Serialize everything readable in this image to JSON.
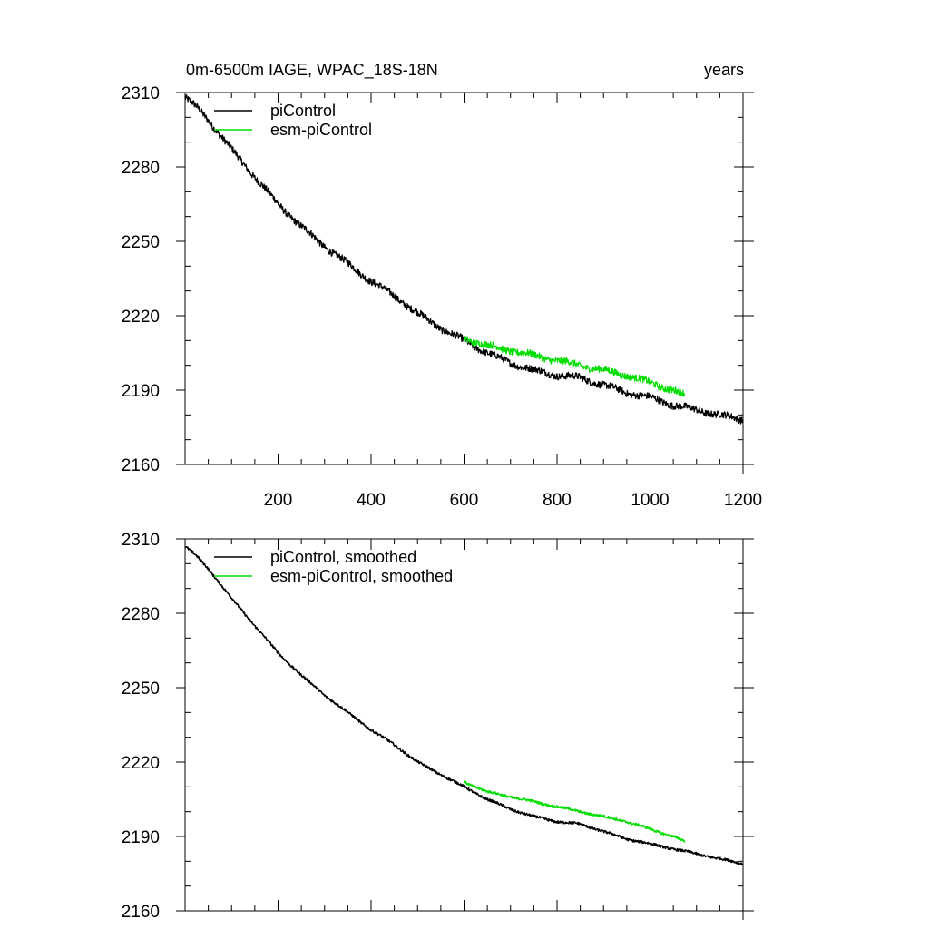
{
  "figure": {
    "title_left": "0m-6500m IAGE, WPAC_18S-18N",
    "title_right": "years"
  },
  "colors": {
    "picontrol": "#000000",
    "esm": "#00dd00",
    "axis": "#000000"
  },
  "chart_data": [
    {
      "type": "line",
      "title": "0m-6500m IAGE, WPAC_18S-18N",
      "xlabel": "years",
      "ylabel": "",
      "xlim": [
        0,
        1200
      ],
      "ylim": [
        2160,
        2310
      ],
      "xticks": [
        200,
        400,
        600,
        800,
        1000,
        1200
      ],
      "xtick_labels": [
        "200",
        "400",
        "600",
        "800",
        "1000",
        "1200"
      ],
      "yticks": [
        2160,
        2190,
        2220,
        2250,
        2280,
        2310
      ],
      "ytick_labels": [
        "2160",
        "2190",
        "2220",
        "2250",
        "2280",
        "2310"
      ],
      "legend_position": "top-left",
      "series": [
        {
          "name": "piControl",
          "color": "#000000",
          "noise": 1.4,
          "x": [
            0,
            25,
            50,
            75,
            100,
            150,
            200,
            250,
            300,
            350,
            400,
            450,
            500,
            550,
            600,
            650,
            700,
            750,
            800,
            850,
            900,
            950,
            1000,
            1050,
            1100,
            1150,
            1200
          ],
          "y": [
            2308,
            2304,
            2299,
            2293,
            2287,
            2276,
            2265,
            2256,
            2248,
            2241,
            2234,
            2228,
            2221,
            2215,
            2210,
            2205,
            2201,
            2198,
            2196,
            2195,
            2192,
            2189,
            2187,
            2184,
            2182,
            2180,
            2178
          ]
        },
        {
          "name": "esm-piControl",
          "color": "#00dd00",
          "noise": 1.4,
          "x": [
            600,
            650,
            700,
            750,
            800,
            850,
            900,
            950,
            1000,
            1050,
            1075
          ],
          "y": [
            2211,
            2208,
            2206,
            2204,
            2202,
            2200,
            2198,
            2196,
            2193,
            2190,
            2188
          ]
        }
      ]
    },
    {
      "type": "line",
      "title": "",
      "xlabel": "",
      "ylabel": "",
      "xlim": [
        0,
        1200
      ],
      "ylim": [
        2160,
        2310
      ],
      "xticks": [
        200,
        400,
        600,
        800,
        1000,
        1200
      ],
      "xtick_labels": [],
      "yticks": [
        2160,
        2190,
        2220,
        2250,
        2280,
        2310
      ],
      "ytick_labels": [
        "2160",
        "2190",
        "2220",
        "2250",
        "2280",
        "2310"
      ],
      "legend_position": "top-left",
      "series": [
        {
          "name": "piControl, smoothed",
          "color": "#000000",
          "noise": 0.5,
          "x": [
            0,
            25,
            50,
            75,
            100,
            150,
            200,
            250,
            300,
            350,
            400,
            450,
            500,
            550,
            600,
            650,
            700,
            750,
            800,
            850,
            900,
            950,
            1000,
            1050,
            1100,
            1150,
            1200
          ],
          "y": [
            2307,
            2303,
            2298,
            2292,
            2286,
            2275,
            2264,
            2255,
            2247,
            2240,
            2233,
            2227,
            2220,
            2215,
            2210,
            2205,
            2201,
            2198,
            2196,
            2195,
            2192,
            2189,
            2187,
            2185,
            2183,
            2181,
            2179
          ]
        },
        {
          "name": "esm-piControl, smoothed",
          "color": "#00dd00",
          "noise": 0.5,
          "x": [
            600,
            650,
            700,
            750,
            800,
            850,
            900,
            950,
            1000,
            1050,
            1075
          ],
          "y": [
            2212,
            2208,
            2206,
            2204,
            2202,
            2200,
            2198,
            2196,
            2193,
            2190,
            2188
          ]
        }
      ]
    }
  ]
}
